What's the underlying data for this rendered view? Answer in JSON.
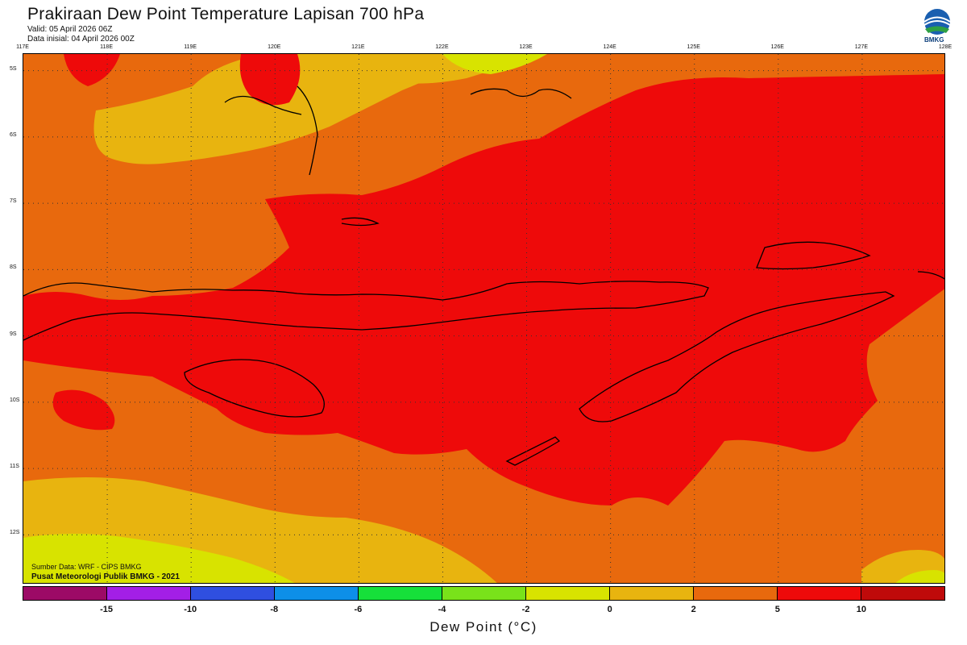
{
  "header": {
    "title": "Prakiraan Dew Point Temperature Lapisan 700 hPa",
    "valid": "Valid: 05 April 2026 06Z",
    "init": "Data inisial: 04 April 2026 00Z",
    "logo_text": "BMKG"
  },
  "map": {
    "lon_labels": [
      "117E",
      "118E",
      "119E",
      "120E",
      "121E",
      "122E",
      "123E",
      "124E",
      "125E",
      "126E",
      "127E",
      "128E"
    ],
    "lat_labels": [
      "5S",
      "6S",
      "7S",
      "8S",
      "9S",
      "10S",
      "11S",
      "12S"
    ]
  },
  "footer": {
    "source": "Sumber Data: WRF - CIPS BMKG",
    "credit": "Pusat Meteorologi Publik BMKG - 2021"
  },
  "colorbar": {
    "label": "Dew Point (°C)",
    "colors": [
      "#9c0a66",
      "#a31fe6",
      "#2f4fe0",
      "#0d8fe8",
      "#16e03a",
      "#79e21a",
      "#d8e300",
      "#e8b40f",
      "#e8690d",
      "#ee0a0a",
      "#bf0a0a"
    ],
    "ticks": [
      "-15",
      "-10",
      "-8",
      "-6",
      "-4",
      "-2",
      "0",
      "2",
      "5",
      "10"
    ]
  },
  "colors": {
    "dew_0_2": "#e8b40f",
    "dew_2_5": "#e8690d",
    "dew_5_10": "#ee0a0a",
    "dew_m2_0": "#d8e300"
  }
}
